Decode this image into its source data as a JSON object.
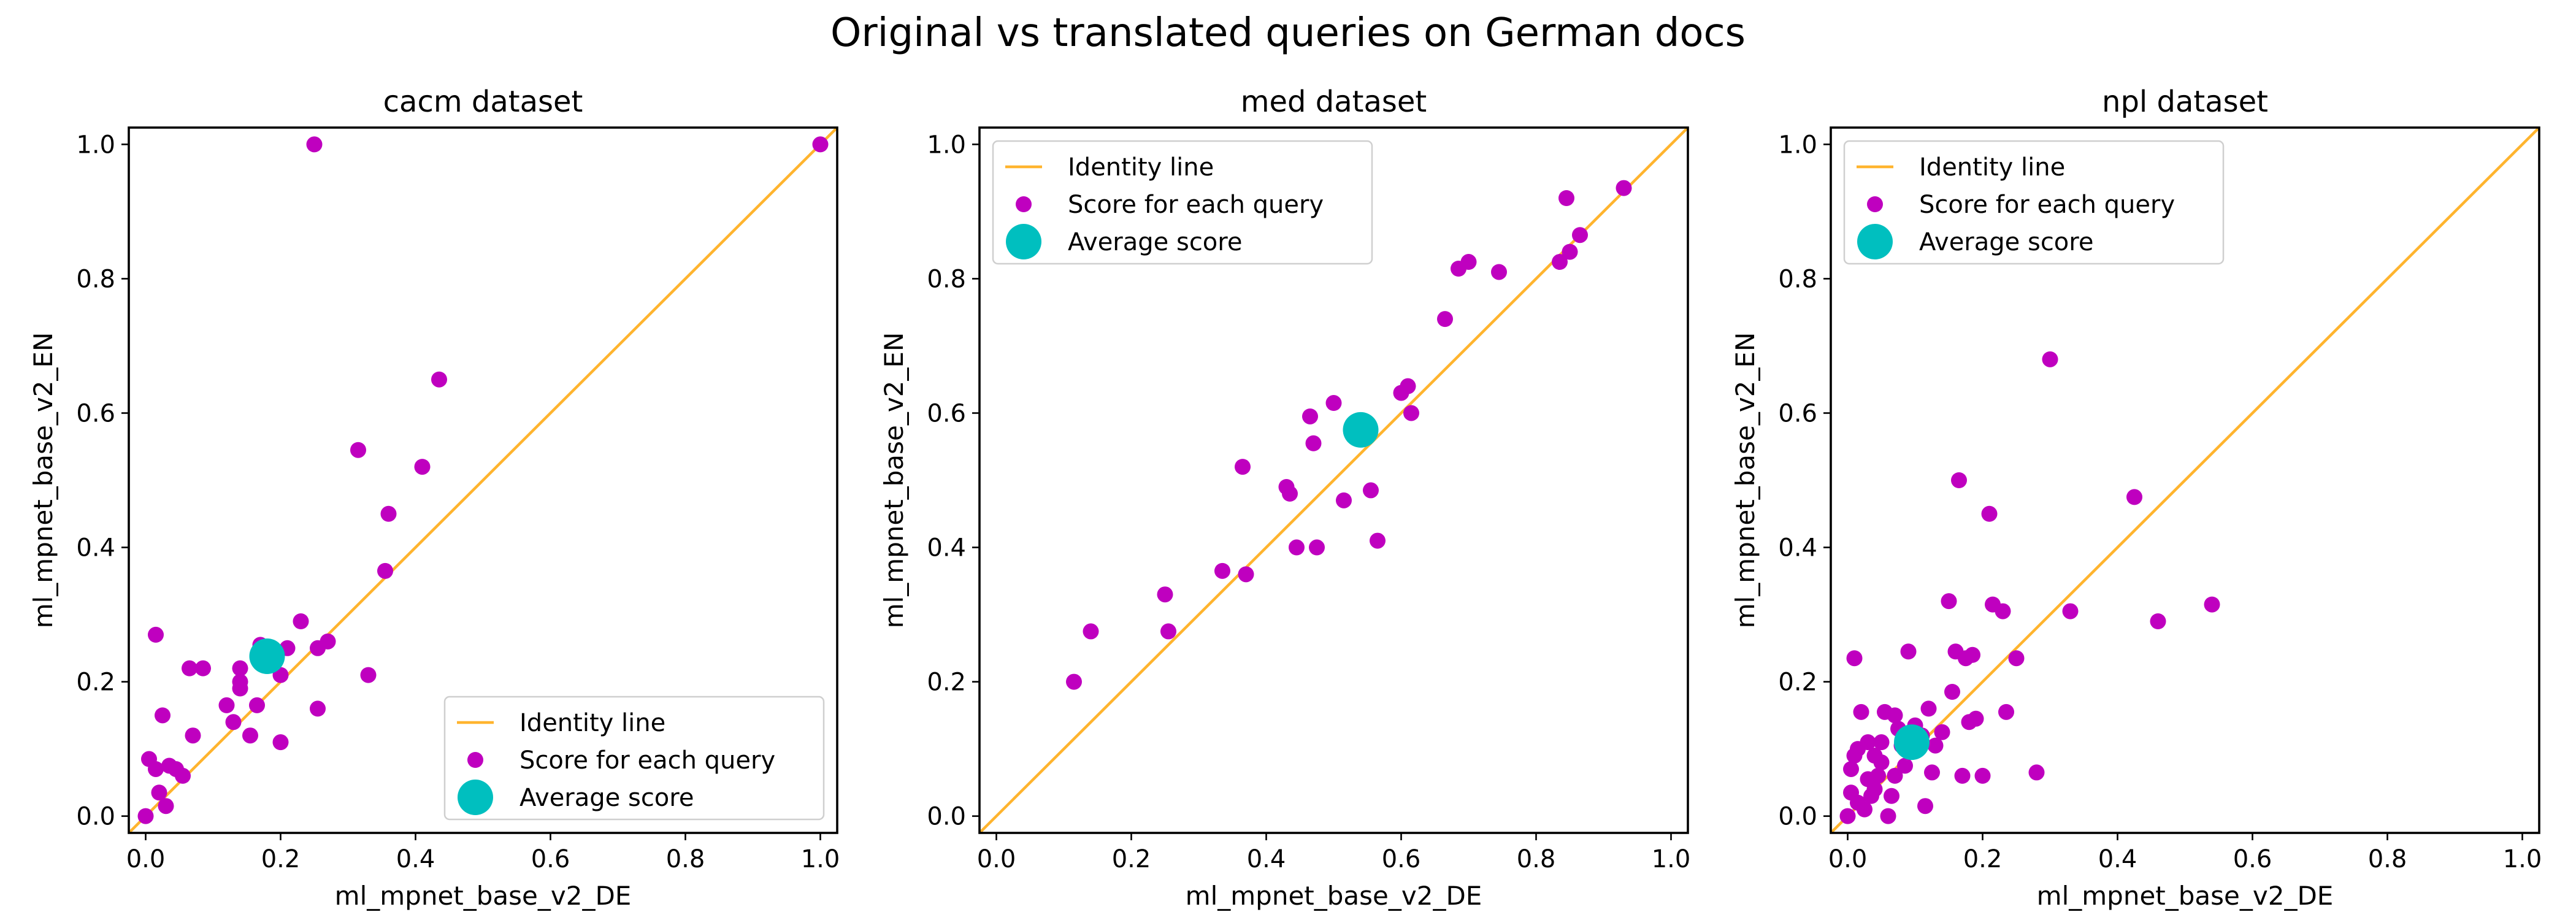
{
  "figure": {
    "title": "Original vs translated queries on German docs"
  },
  "colors": {
    "identity_line": "#FFB42E",
    "query_points": "#BF00BF",
    "average_point": "#00BFBF"
  },
  "chart_data": [
    {
      "type": "scatter",
      "title": "cacm dataset",
      "xlabel": "ml_mpnet_base_v2_DE",
      "ylabel": "ml_mpnet_base_v2_EN",
      "xlim": [
        -0.025,
        1.025
      ],
      "ylim": [
        -0.025,
        1.025
      ],
      "xticks": [
        "0.0",
        "0.2",
        "0.4",
        "0.6",
        "0.8",
        "1.0"
      ],
      "yticks": [
        "0.0",
        "0.2",
        "0.4",
        "0.6",
        "0.8",
        "1.0"
      ],
      "legend_position": "lower-right",
      "legend": [
        "Identity line",
        "Score for each query",
        "Average score"
      ],
      "identity_line": [
        [
          -0.025,
          -0.025
        ],
        [
          1.025,
          1.025
        ]
      ],
      "series": [
        {
          "name": "Score for each query",
          "points": [
            [
              0.0,
              0.0
            ],
            [
              0.005,
              0.085
            ],
            [
              0.015,
              0.27
            ],
            [
              0.015,
              0.07
            ],
            [
              0.02,
              0.035
            ],
            [
              0.025,
              0.15
            ],
            [
              0.03,
              0.015
            ],
            [
              0.035,
              0.075
            ],
            [
              0.045,
              0.07
            ],
            [
              0.055,
              0.06
            ],
            [
              0.065,
              0.22
            ],
            [
              0.07,
              0.12
            ],
            [
              0.085,
              0.22
            ],
            [
              0.12,
              0.165
            ],
            [
              0.13,
              0.14
            ],
            [
              0.14,
              0.22
            ],
            [
              0.14,
              0.19
            ],
            [
              0.14,
              0.2
            ],
            [
              0.155,
              0.12
            ],
            [
              0.165,
              0.165
            ],
            [
              0.17,
              0.255
            ],
            [
              0.18,
              0.25
            ],
            [
              0.19,
              0.235
            ],
            [
              0.2,
              0.21
            ],
            [
              0.2,
              0.11
            ],
            [
              0.21,
              0.25
            ],
            [
              0.23,
              0.29
            ],
            [
              0.25,
              1.0
            ],
            [
              0.255,
              0.16
            ],
            [
              0.255,
              0.25
            ],
            [
              0.27,
              0.26
            ],
            [
              0.315,
              0.545
            ],
            [
              0.33,
              0.21
            ],
            [
              0.355,
              0.365
            ],
            [
              0.36,
              0.45
            ],
            [
              0.41,
              0.52
            ],
            [
              0.435,
              0.65
            ],
            [
              1.0,
              1.0
            ]
          ]
        },
        {
          "name": "Average score",
          "points": [
            [
              0.18,
              0.238
            ]
          ]
        }
      ]
    },
    {
      "type": "scatter",
      "title": "med dataset",
      "xlabel": "ml_mpnet_base_v2_DE",
      "ylabel": "ml_mpnet_base_v2_EN",
      "xlim": [
        -0.025,
        1.025
      ],
      "ylim": [
        -0.025,
        1.025
      ],
      "xticks": [
        "0.0",
        "0.2",
        "0.4",
        "0.6",
        "0.8",
        "1.0"
      ],
      "yticks": [
        "0.0",
        "0.2",
        "0.4",
        "0.6",
        "0.8",
        "1.0"
      ],
      "legend_position": "upper-left",
      "legend": [
        "Identity line",
        "Score for each query",
        "Average score"
      ],
      "identity_line": [
        [
          -0.025,
          -0.025
        ],
        [
          1.025,
          1.025
        ]
      ],
      "series": [
        {
          "name": "Score for each query",
          "points": [
            [
              0.115,
              0.2
            ],
            [
              0.14,
              0.275
            ],
            [
              0.25,
              0.33
            ],
            [
              0.255,
              0.275
            ],
            [
              0.335,
              0.365
            ],
            [
              0.365,
              0.52
            ],
            [
              0.37,
              0.36
            ],
            [
              0.43,
              0.49
            ],
            [
              0.435,
              0.48
            ],
            [
              0.445,
              0.4
            ],
            [
              0.465,
              0.595
            ],
            [
              0.47,
              0.555
            ],
            [
              0.475,
              0.4
            ],
            [
              0.5,
              0.615
            ],
            [
              0.515,
              0.47
            ],
            [
              0.555,
              0.485
            ],
            [
              0.565,
              0.41
            ],
            [
              0.6,
              0.63
            ],
            [
              0.61,
              0.64
            ],
            [
              0.615,
              0.6
            ],
            [
              0.665,
              0.74
            ],
            [
              0.685,
              0.815
            ],
            [
              0.7,
              0.825
            ],
            [
              0.745,
              0.81
            ],
            [
              0.835,
              0.825
            ],
            [
              0.845,
              0.92
            ],
            [
              0.85,
              0.84
            ],
            [
              0.865,
              0.865
            ],
            [
              0.93,
              0.935
            ]
          ]
        },
        {
          "name": "Average score",
          "points": [
            [
              0.54,
              0.575
            ]
          ]
        }
      ]
    },
    {
      "type": "scatter",
      "title": "npl dataset",
      "xlabel": "ml_mpnet_base_v2_DE",
      "ylabel": "ml_mpnet_base_v2_EN",
      "xlim": [
        -0.025,
        1.025
      ],
      "ylim": [
        -0.025,
        1.025
      ],
      "xticks": [
        "0.0",
        "0.2",
        "0.4",
        "0.6",
        "0.8",
        "1.0"
      ],
      "yticks": [
        "0.0",
        "0.2",
        "0.4",
        "0.6",
        "0.8",
        "1.0"
      ],
      "legend_position": "upper-left",
      "legend": [
        "Identity line",
        "Score for each query",
        "Average score"
      ],
      "identity_line": [
        [
          -0.025,
          -0.025
        ],
        [
          1.025,
          1.025
        ]
      ],
      "series": [
        {
          "name": "Score for each query",
          "points": [
            [
              0.0,
              0.0
            ],
            [
              0.005,
              0.035
            ],
            [
              0.005,
              0.07
            ],
            [
              0.01,
              0.235
            ],
            [
              0.01,
              0.09
            ],
            [
              0.015,
              0.02
            ],
            [
              0.015,
              0.1
            ],
            [
              0.02,
              0.155
            ],
            [
              0.025,
              0.01
            ],
            [
              0.03,
              0.055
            ],
            [
              0.03,
              0.11
            ],
            [
              0.035,
              0.03
            ],
            [
              0.04,
              0.04
            ],
            [
              0.04,
              0.09
            ],
            [
              0.045,
              0.06
            ],
            [
              0.05,
              0.08
            ],
            [
              0.05,
              0.11
            ],
            [
              0.055,
              0.155
            ],
            [
              0.06,
              0.0
            ],
            [
              0.065,
              0.03
            ],
            [
              0.07,
              0.15
            ],
            [
              0.07,
              0.06
            ],
            [
              0.075,
              0.13
            ],
            [
              0.08,
              0.105
            ],
            [
              0.085,
              0.075
            ],
            [
              0.09,
              0.245
            ],
            [
              0.095,
              0.1
            ],
            [
              0.1,
              0.135
            ],
            [
              0.11,
              0.12
            ],
            [
              0.115,
              0.015
            ],
            [
              0.12,
              0.16
            ],
            [
              0.125,
              0.065
            ],
            [
              0.13,
              0.105
            ],
            [
              0.14,
              0.125
            ],
            [
              0.15,
              0.32
            ],
            [
              0.155,
              0.185
            ],
            [
              0.16,
              0.245
            ],
            [
              0.165,
              0.5
            ],
            [
              0.17,
              0.06
            ],
            [
              0.175,
              0.235
            ],
            [
              0.18,
              0.14
            ],
            [
              0.185,
              0.24
            ],
            [
              0.19,
              0.145
            ],
            [
              0.2,
              0.06
            ],
            [
              0.21,
              0.45
            ],
            [
              0.215,
              0.315
            ],
            [
              0.23,
              0.305
            ],
            [
              0.235,
              0.155
            ],
            [
              0.25,
              0.235
            ],
            [
              0.28,
              0.065
            ],
            [
              0.3,
              0.68
            ],
            [
              0.33,
              0.305
            ],
            [
              0.425,
              0.475
            ],
            [
              0.46,
              0.29
            ],
            [
              0.54,
              0.315
            ]
          ]
        },
        {
          "name": "Average score",
          "points": [
            [
              0.095,
              0.11
            ]
          ]
        }
      ]
    }
  ]
}
